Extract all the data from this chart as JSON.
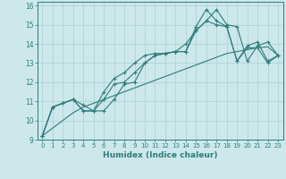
{
  "xlabel": "Humidex (Indice chaleur)",
  "ylabel": "",
  "xlim": [
    -0.5,
    23.5
  ],
  "ylim": [
    9,
    16.2
  ],
  "yticks": [
    9,
    10,
    11,
    12,
    13,
    14,
    15,
    16
  ],
  "xticks": [
    0,
    1,
    2,
    3,
    4,
    5,
    6,
    7,
    8,
    9,
    10,
    11,
    12,
    13,
    14,
    15,
    16,
    17,
    18,
    19,
    20,
    21,
    22,
    23
  ],
  "bg_color": "#cce8ea",
  "grid_color": "#aad0d3",
  "line_color": "#2d7c7c",
  "series_marked": [
    [
      9.2,
      10.7,
      10.9,
      11.1,
      10.5,
      10.5,
      11.5,
      12.2,
      12.5,
      13.0,
      13.4,
      13.5,
      13.5,
      13.6,
      13.6,
      14.9,
      15.8,
      15.2,
      14.9,
      13.1,
      13.9,
      14.1,
      13.1,
      13.4
    ],
    [
      9.2,
      10.7,
      10.9,
      11.1,
      10.8,
      10.5,
      10.5,
      11.1,
      11.9,
      12.0,
      13.0,
      13.4,
      13.5,
      13.6,
      13.6,
      14.7,
      15.2,
      15.8,
      15.0,
      14.9,
      13.1,
      13.9,
      14.1,
      13.4
    ],
    [
      9.2,
      10.7,
      10.9,
      11.1,
      10.5,
      10.5,
      11.1,
      11.9,
      12.0,
      12.5,
      13.0,
      13.4,
      13.5,
      13.6,
      14.0,
      14.7,
      15.2,
      15.0,
      14.9,
      13.1,
      13.8,
      13.8,
      13.0,
      13.4
    ]
  ],
  "series_trend": [
    9.2,
    9.6,
    10.0,
    10.4,
    10.7,
    10.9,
    11.1,
    11.3,
    11.5,
    11.7,
    11.9,
    12.1,
    12.3,
    12.5,
    12.7,
    12.9,
    13.1,
    13.3,
    13.5,
    13.6,
    13.7,
    13.8,
    13.85,
    13.4
  ]
}
